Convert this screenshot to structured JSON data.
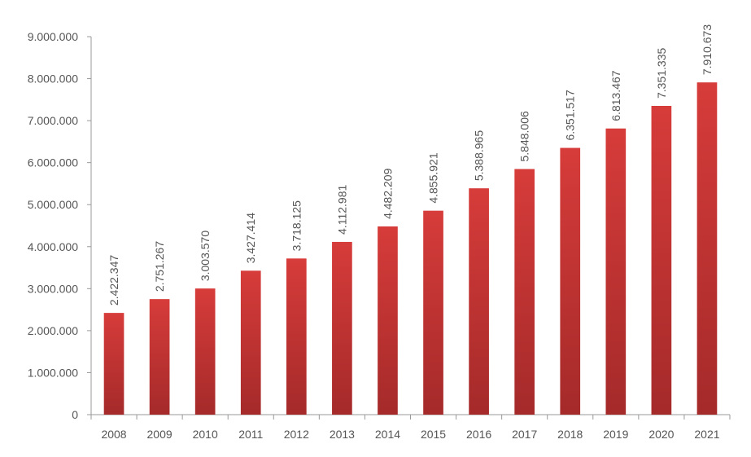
{
  "chart_data": {
    "type": "bar",
    "categories": [
      "2008",
      "2009",
      "2010",
      "2011",
      "2012",
      "2013",
      "2014",
      "2015",
      "2016",
      "2017",
      "2018",
      "2019",
      "2020",
      "2021"
    ],
    "values": [
      2422347,
      2751267,
      3003570,
      3427414,
      3718125,
      4112981,
      4482209,
      4855921,
      5388965,
      5848006,
      6351517,
      6813467,
      7351335,
      7910673
    ],
    "data_labels": [
      "2.422.347",
      "2.751.267",
      "3.003.570",
      "3.427.414",
      "3.718.125",
      "4.112.981",
      "4.482.209",
      "4.855.921",
      "5.388.965",
      "5.848.006",
      "6.351.517",
      "6.813.467",
      "7.351.335",
      "7.910.673"
    ],
    "y_ticks": [
      0,
      1000000,
      2000000,
      3000000,
      4000000,
      5000000,
      6000000,
      7000000,
      8000000,
      9000000
    ],
    "y_tick_labels": [
      "0",
      "1.000.000",
      "2.000.000",
      "3.000.000",
      "4.000.000",
      "5.000.000",
      "6.000.000",
      "7.000.000",
      "8.000.000",
      "9.000.000"
    ],
    "ylim": [
      0,
      9000000
    ],
    "title": "",
    "xlabel": "",
    "ylabel": "",
    "grid": false,
    "bar_color_top": "#d63c3a",
    "bar_color_bottom": "#a52a2a"
  }
}
